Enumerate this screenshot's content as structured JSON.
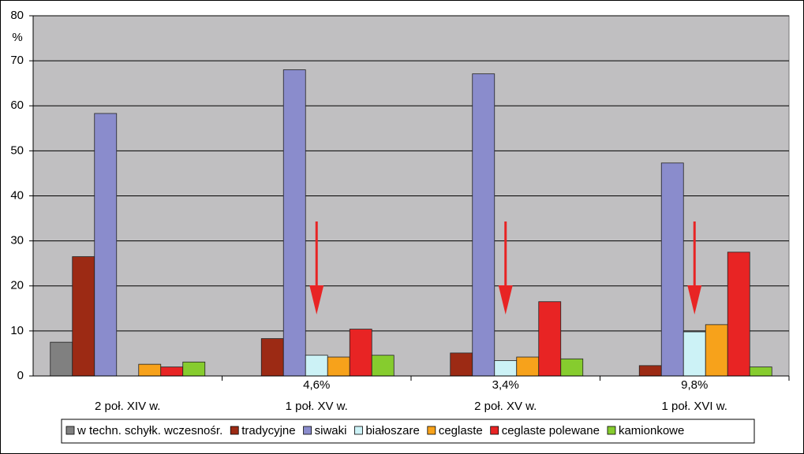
{
  "chart_data": {
    "type": "bar",
    "y_unit": "%",
    "categories": [
      "2 poł. XIV w.",
      "1 poł. XV w.",
      "2 poł. XV w.",
      "1 poł. XVI w."
    ],
    "series": [
      {
        "name": "w techn. schyłk. wczesnośr.",
        "color": "#808080",
        "values": [
          7.5,
          null,
          null,
          null
        ]
      },
      {
        "name": "tradycyjne",
        "color": "#9c2a14",
        "values": [
          26.5,
          8.3,
          5.1,
          2.3
        ]
      },
      {
        "name": "siwaki",
        "color": "#8a8ccc",
        "values": [
          58.3,
          68,
          67.1,
          47.3
        ]
      },
      {
        "name": "białoszare",
        "color": "#ccf2f6",
        "values": [
          null,
          4.6,
          3.4,
          9.8
        ],
        "value_labels": [
          null,
          "4,6%",
          "3,4%",
          "9,8%"
        ]
      },
      {
        "name": "ceglaste",
        "color": "#f7a21b",
        "values": [
          2.6,
          4.2,
          4.2,
          11.4
        ]
      },
      {
        "name": "ceglaste polewane",
        "color": "#e82424",
        "values": [
          2.0,
          10.4,
          16.5,
          27.5
        ]
      },
      {
        "name": "kamionkowe",
        "color": "#86cc2e",
        "values": [
          3.1,
          4.6,
          3.8,
          2.0
        ]
      }
    ],
    "ylim": [
      0,
      80
    ],
    "yticks": [
      0,
      10,
      20,
      30,
      40,
      50,
      60,
      70,
      80
    ],
    "grid": true,
    "legend": "bottom"
  }
}
